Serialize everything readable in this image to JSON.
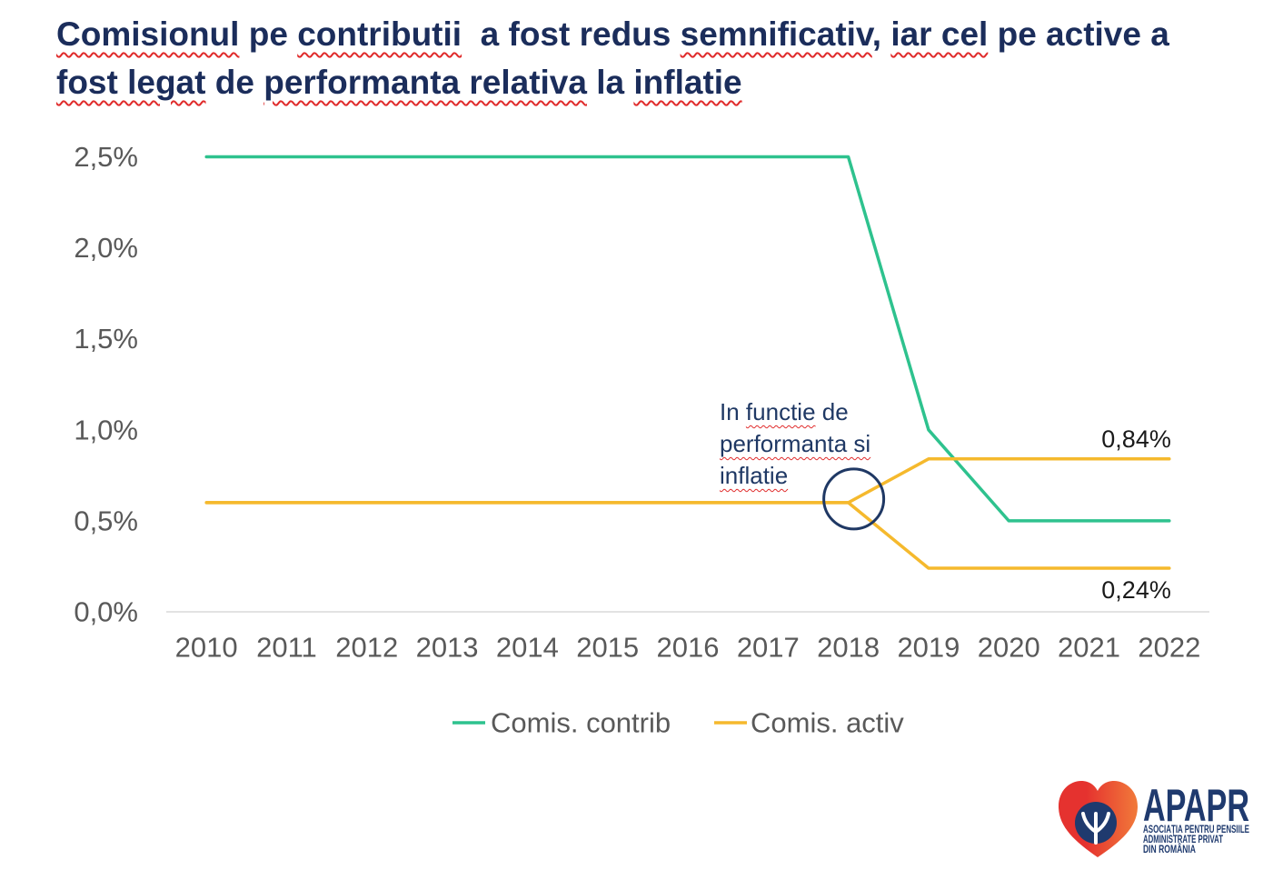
{
  "slide": {
    "title_segments": [
      {
        "text": "Comisionul",
        "spellcheck_underline": true
      },
      {
        "text": " pe "
      },
      {
        "text": "contributii",
        "spellcheck_underline": true
      },
      {
        "text": "  a fost redus "
      },
      {
        "text": "semnificativ",
        "spellcheck_underline": true
      },
      {
        "text": ", "
      },
      {
        "text": "iar cel",
        "spellcheck_underline": true
      },
      {
        "text": " pe active a "
      },
      {
        "text": "fost legat",
        "spellcheck_underline": true
      },
      {
        "text": " de "
      },
      {
        "text": "performanta relativa",
        "spellcheck_underline": true
      },
      {
        "text": " la "
      },
      {
        "text": "inflatie",
        "spellcheck_underline": true
      }
    ],
    "title_color": "#1b2d5b",
    "spellcheck_color": "#e02b2b"
  },
  "chart_data": {
    "type": "line",
    "categories": [
      "2010",
      "2011",
      "2012",
      "2013",
      "2014",
      "2015",
      "2016",
      "2017",
      "2018",
      "2019",
      "2020",
      "2021",
      "2022"
    ],
    "y_ticks": [
      0,
      0.5,
      1.0,
      1.5,
      2.0,
      2.5
    ],
    "y_tick_labels": [
      "0,0%",
      "0,5%",
      "1,0%",
      "1,5%",
      "2,0%",
      "2,5%"
    ],
    "ylim": [
      0,
      2.5
    ],
    "grid": false,
    "legend": "bottom",
    "axis_label_color": "#595959",
    "series": [
      {
        "name": "Comis. contrib",
        "color": "#2ec28e",
        "values": [
          2.5,
          2.5,
          2.5,
          2.5,
          2.5,
          2.5,
          2.5,
          2.5,
          2.5,
          1.0,
          0.5,
          0.5,
          0.5
        ]
      },
      {
        "name": "Comis. activ",
        "color": "#f5b92d",
        "values_high": [
          0.6,
          0.6,
          0.6,
          0.6,
          0.6,
          0.6,
          0.6,
          0.6,
          0.6,
          0.84,
          0.84,
          0.84,
          0.84
        ],
        "values_low": [
          0.6,
          0.6,
          0.6,
          0.6,
          0.6,
          0.6,
          0.6,
          0.6,
          0.6,
          0.24,
          0.24,
          0.24,
          0.24
        ]
      }
    ],
    "data_labels": [
      {
        "series": "Comis. activ",
        "category": "2022",
        "value": 0.84,
        "text": "0,84%",
        "placement": "above"
      },
      {
        "series": "Comis. activ",
        "category": "2022",
        "value": 0.24,
        "text": "0,24%",
        "placement": "below"
      }
    ],
    "annotation": {
      "segments": [
        {
          "text": "In "
        },
        {
          "text": "functie",
          "spellcheck_underline": true
        },
        {
          "text": " de "
        },
        {
          "text": "performanta si",
          "spellcheck_underline": true
        },
        {
          "text": " "
        },
        {
          "text": "inflatie",
          "spellcheck_underline": true
        }
      ],
      "color": "#1f3864",
      "marker": "circle",
      "category": "2018",
      "value": 0.6
    }
  },
  "logo": {
    "name": "APAPR",
    "tagline_lines": [
      "ASOCIAȚIA PENTRU PENSIILE",
      "ADMINISTRATE PRIVAT",
      "DIN ROMÂNIA"
    ],
    "colors": {
      "text": "#1f3a6e",
      "heart": "#e5322f",
      "heart_accent": "#f17a3a",
      "inner": "#1f3a6e",
      "tree": "#ffffff"
    }
  }
}
